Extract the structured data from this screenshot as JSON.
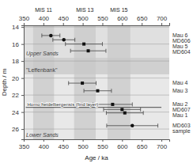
{
  "chart_data": {
    "type": "scatter",
    "x_label": "Age / ka",
    "y_label": "Depth / m",
    "xlim": [
      350,
      720
    ],
    "ylim": [
      27.2,
      13.8
    ],
    "xticks": [
      350,
      400,
      450,
      500,
      550,
      600,
      650,
      700
    ],
    "x2ticks": [
      350,
      400,
      450,
      500,
      550,
      600,
      650,
      700
    ],
    "yticks": [
      14,
      16,
      18,
      20,
      22,
      24,
      26
    ],
    "grid": true,
    "x": [
      419,
      452,
      503,
      514,
      499,
      538,
      576,
      600,
      607,
      626
    ],
    "values": [
      15.0,
      15.5,
      16.0,
      16.8,
      20.6,
      21.5,
      23.1,
      23.7,
      24.1,
      25.6
    ],
    "err_low": [
      23,
      28,
      47,
      45,
      35,
      35,
      50,
      47,
      47,
      65
    ],
    "err_high": [
      23,
      28,
      47,
      45,
      35,
      35,
      50,
      47,
      47,
      65
    ],
    "markers": [
      "circle",
      "circle",
      "square",
      "square",
      "square",
      "square",
      "square",
      "square",
      "square",
      "circle"
    ],
    "color": "#111111",
    "error_color": "#555555",
    "point_labels": [
      [
        "Mau 6",
        "MD606"
      ],
      [],
      [
        "Mau 5"
      ],
      [
        "MD604"
      ],
      [
        "Mau 4"
      ],
      [
        "Mau 3"
      ],
      [
        "Mau 2"
      ],
      [
        "MD607"
      ],
      [
        "Mau 1"
      ],
      [
        "MD603",
        "sample"
      ]
    ],
    "layers": [
      {
        "label": "Upper Sands",
        "from": 13.8,
        "to": 17.6,
        "color": "#e0e0e0"
      },
      {
        "label": "\"Leffenbank\"",
        "from": 17.6,
        "to": 19.6,
        "color": "#d0d0d0"
      },
      {
        "label": "Lower Sands",
        "from": 19.6,
        "to": 27.2,
        "color": "#e8e8e8"
      }
    ],
    "mis_bands": [
      {
        "label": "MIS 11",
        "from": 374,
        "to": 427,
        "color": "#c8c8c8"
      },
      {
        "label": "MIS 13",
        "from": 478,
        "to": 533,
        "color": "#c8c8c8"
      },
      {
        "label": "MIS 15",
        "from": 563,
        "to": 621,
        "color": "#c8c8c8"
      }
    ],
    "homo_line": {
      "y": 23.45,
      "x": [
        355,
        700
      ],
      "text": "Homo heidelbergensis (find layer)"
    }
  }
}
